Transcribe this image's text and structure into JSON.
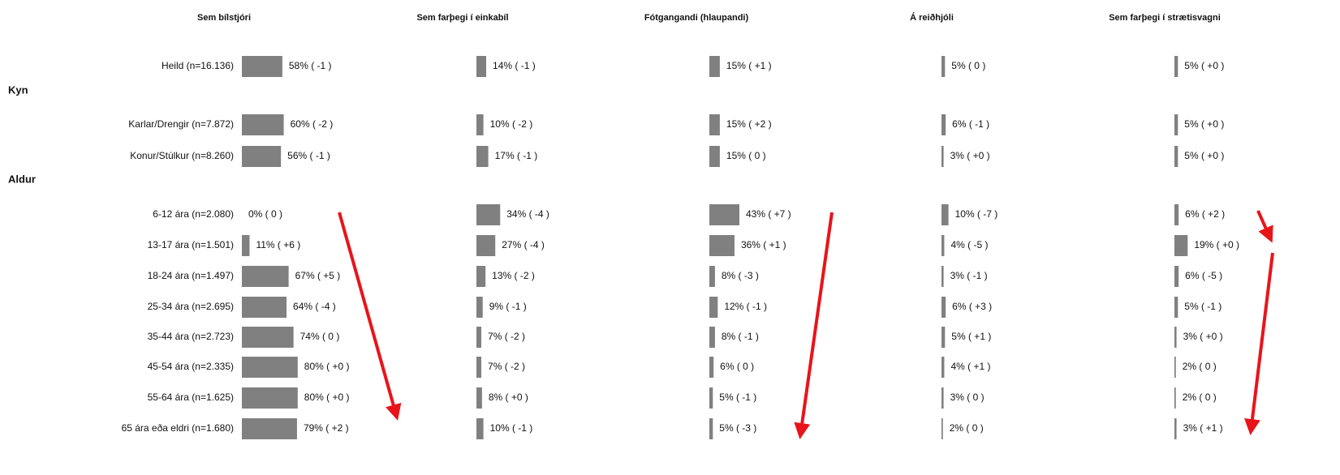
{
  "chart_data": {
    "type": "bar",
    "sections": [
      {
        "categories": [
          "Heild (n=16.136)"
        ]
      },
      {
        "label": "Kyn",
        "categories": [
          "Karlar/Drengir (n=7.872)",
          "Konur/Stúlkur (n=8.260)"
        ]
      },
      {
        "label": "Aldur",
        "categories": [
          "6-12 ára (n=2.080)",
          "13-17 ára (n=1.501)",
          "18-24 ára (n=1.497)",
          "25-34 ára (n=2.695)",
          "35-44 ára (n=2.723)",
          "45-54 ára (n=2.335)",
          "55-64 ára (n=1.625)",
          "65 ára eða eldri (n=1.680)"
        ]
      }
    ],
    "xlim": [
      0,
      100
    ],
    "series": [
      {
        "name": "Sem bílstjóri",
        "color": "#808080",
        "values": [
          58,
          60,
          56,
          0,
          11,
          67,
          64,
          74,
          80,
          80,
          79
        ],
        "value_labels": [
          "58% ( -1 )",
          "60% ( -2 )",
          "56% ( -1 )",
          "0% ( 0 )",
          "11% ( +6 )",
          "67% ( +5 )",
          "64% ( -4 )",
          "74% ( 0 )",
          "80% ( +0 )",
          "80% ( +0 )",
          "79% ( +2 )"
        ]
      },
      {
        "name": "Sem farþegi í einkabíl",
        "color": "#808080",
        "values": [
          14,
          10,
          17,
          34,
          27,
          13,
          9,
          7,
          7,
          8,
          10
        ],
        "value_labels": [
          "14% ( -1 )",
          "10% ( -2 )",
          "17% ( -1 )",
          "34% ( -4 )",
          "27% ( -4 )",
          "13% ( -2 )",
          "9% ( -1 )",
          "7% ( -2 )",
          "7% ( -2 )",
          "8% ( +0 )",
          "10% ( -1 )"
        ]
      },
      {
        "name": "Fótgangandi (hlaupandi)",
        "color": "#808080",
        "values": [
          15,
          15,
          15,
          43,
          36,
          8,
          12,
          8,
          6,
          5,
          5
        ],
        "value_labels": [
          "15% ( +1 )",
          "15% ( +2 )",
          "15% ( 0 )",
          "43% ( +7 )",
          "36% ( +1 )",
          "8% ( -3 )",
          "12% ( -1 )",
          "8% ( -1 )",
          "6% ( 0 )",
          "5% ( -1 )",
          "5% ( -3 )"
        ]
      },
      {
        "name": "Á reiðhjóli",
        "color": "#808080",
        "values": [
          5,
          6,
          3,
          10,
          4,
          3,
          6,
          5,
          4,
          3,
          2
        ],
        "value_labels": [
          "5% ( 0 )",
          "6% ( -1 )",
          "3% ( +0 )",
          "10% ( -7 )",
          "4% ( -5 )",
          "3% ( -1 )",
          "6% ( +3 )",
          "5% ( +1 )",
          "4% ( +1 )",
          "3% ( 0 )",
          "2% ( 0 )"
        ]
      },
      {
        "name": "Sem farþegi í strætisvagni",
        "color": "#808080",
        "values": [
          5,
          5,
          5,
          6,
          19,
          6,
          5,
          3,
          2,
          2,
          3
        ],
        "value_labels": [
          "5% ( +0 )",
          "5% ( +0 )",
          "5% ( +0 )",
          "6% ( +2 )",
          "19% ( +0 )",
          "6% ( -5 )",
          "5% ( -1 )",
          "3% ( +0 )",
          "2% ( 0 )",
          "2% ( 0 )",
          "3% ( +1 )"
        ]
      }
    ]
  }
}
